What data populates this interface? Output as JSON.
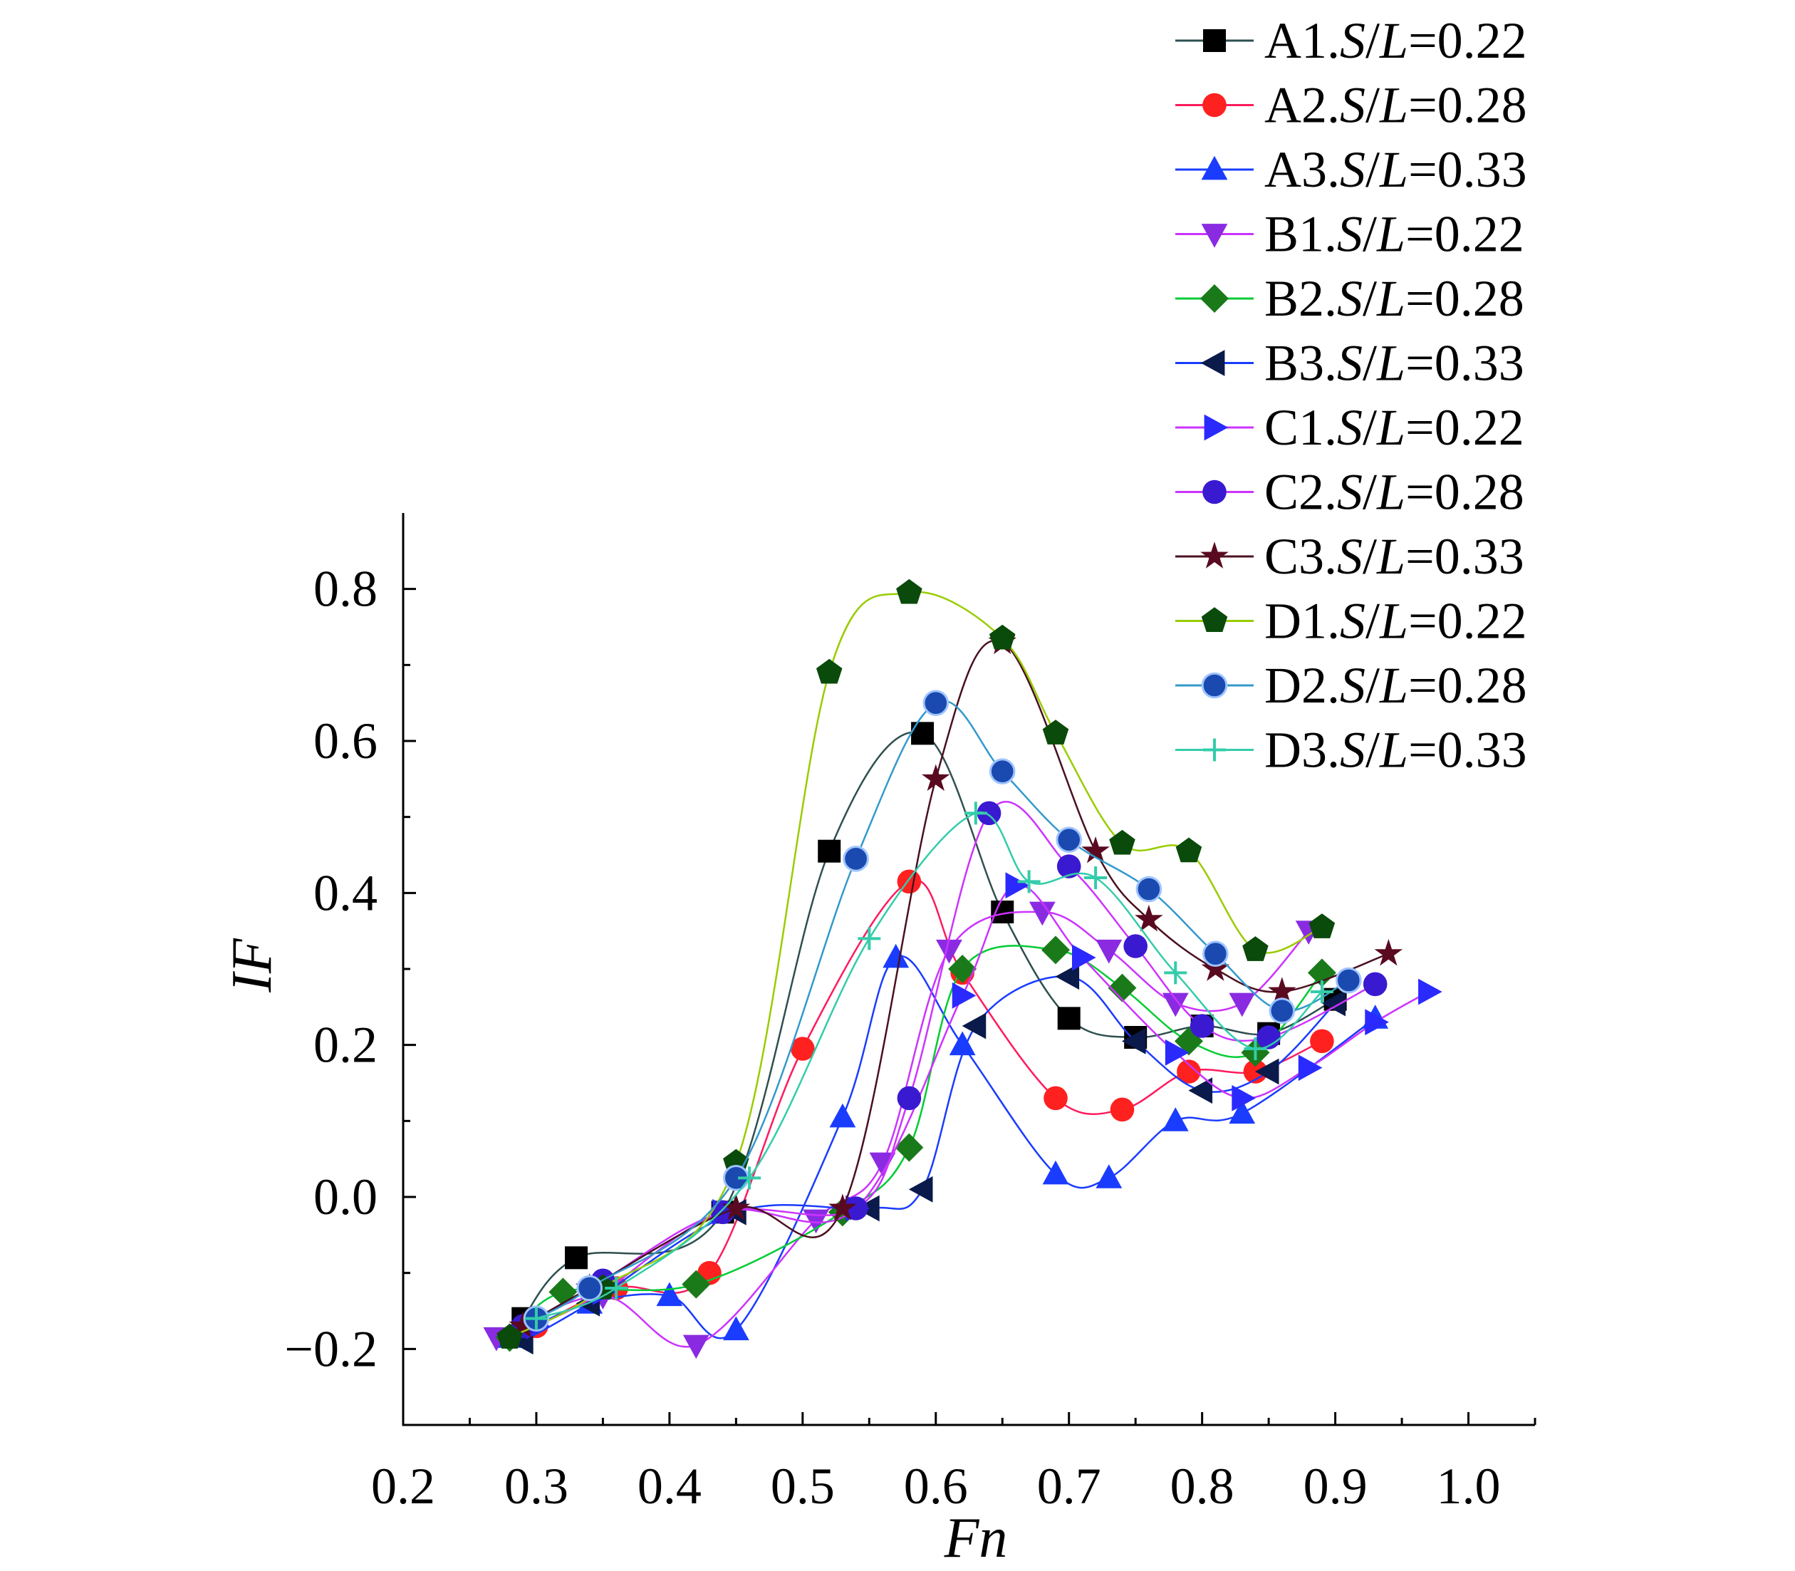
{
  "chart_data": {
    "type": "line",
    "title": "",
    "xlabel": "Fn",
    "ylabel": "IF",
    "xlim": [
      0.2,
      1.05
    ],
    "ylim": [
      -0.3,
      0.9
    ],
    "xticks": [
      "0.2",
      "0.3",
      "0.4",
      "0.5",
      "0.6",
      "0.7",
      "0.8",
      "0.9",
      "1.0"
    ],
    "xtick_values": [
      0.2,
      0.3,
      0.4,
      0.5,
      0.6,
      0.7,
      0.8,
      0.9,
      1.0
    ],
    "yticks": [
      "−0.2",
      "0.0",
      "0.2",
      "0.4",
      "0.6",
      "0.8"
    ],
    "ytick_values": [
      -0.2,
      0.0,
      0.2,
      0.4,
      0.6,
      0.8
    ],
    "grid": false,
    "legend_position": "top-right",
    "series": [
      {
        "label_prefix": "A1.",
        "label_ratio": "=0.22",
        "color": "#2f4f4f",
        "marker": "square",
        "marker_color": "#000000",
        "points": [
          [
            0.29,
            -0.16
          ],
          [
            0.33,
            -0.08
          ],
          [
            0.44,
            -0.02
          ],
          [
            0.52,
            0.455
          ],
          [
            0.59,
            0.61
          ],
          [
            0.65,
            0.375
          ],
          [
            0.7,
            0.235
          ],
          [
            0.75,
            0.21
          ],
          [
            0.8,
            0.225
          ],
          [
            0.85,
            0.215
          ],
          [
            0.9,
            0.26
          ]
        ]
      },
      {
        "label_prefix": "A2.",
        "label_ratio": "=0.28",
        "color": "#ff1a5e",
        "marker": "circle",
        "marker_color": "#ff2020",
        "points": [
          [
            0.3,
            -0.17
          ],
          [
            0.36,
            -0.12
          ],
          [
            0.43,
            -0.1
          ],
          [
            0.5,
            0.195
          ],
          [
            0.58,
            0.415
          ],
          [
            0.62,
            0.295
          ],
          [
            0.69,
            0.13
          ],
          [
            0.74,
            0.115
          ],
          [
            0.79,
            0.165
          ],
          [
            0.84,
            0.165
          ],
          [
            0.89,
            0.205
          ]
        ]
      },
      {
        "label_prefix": "A3.",
        "label_ratio": "=0.33",
        "color": "#1a3cff",
        "marker": "triangle-up",
        "marker_color": "#1a3cff",
        "points": [
          [
            0.28,
            -0.185
          ],
          [
            0.34,
            -0.14
          ],
          [
            0.4,
            -0.13
          ],
          [
            0.45,
            -0.175
          ],
          [
            0.53,
            0.105
          ],
          [
            0.57,
            0.315
          ],
          [
            0.62,
            0.2
          ],
          [
            0.69,
            0.03
          ],
          [
            0.73,
            0.025
          ],
          [
            0.78,
            0.1
          ],
          [
            0.83,
            0.11
          ],
          [
            0.93,
            0.235
          ]
        ]
      },
      {
        "label_prefix": "B1.",
        "label_ratio": "=0.22",
        "color": "#cc33ff",
        "marker": "triangle-down",
        "marker_color": "#8a2be2",
        "points": [
          [
            0.27,
            -0.185
          ],
          [
            0.35,
            -0.13
          ],
          [
            0.42,
            -0.195
          ],
          [
            0.51,
            -0.03
          ],
          [
            0.56,
            0.045
          ],
          [
            0.61,
            0.325
          ],
          [
            0.68,
            0.375
          ],
          [
            0.73,
            0.325
          ],
          [
            0.78,
            0.255
          ],
          [
            0.83,
            0.255
          ],
          [
            0.88,
            0.35
          ]
        ]
      },
      {
        "label_prefix": "B2.",
        "label_ratio": "=0.28",
        "color": "#00cc33",
        "marker": "diamond",
        "marker_color": "#1a7a1a",
        "points": [
          [
            0.28,
            -0.185
          ],
          [
            0.32,
            -0.125
          ],
          [
            0.42,
            -0.115
          ],
          [
            0.53,
            -0.02
          ],
          [
            0.58,
            0.065
          ],
          [
            0.62,
            0.3
          ],
          [
            0.69,
            0.325
          ],
          [
            0.74,
            0.275
          ],
          [
            0.79,
            0.205
          ],
          [
            0.84,
            0.19
          ],
          [
            0.89,
            0.295
          ]
        ]
      },
      {
        "label_prefix": "B3.",
        "label_ratio": "=0.33",
        "color": "#1a3cff",
        "marker": "triangle-left",
        "marker_color": "#0a1a4a",
        "points": [
          [
            0.29,
            -0.19
          ],
          [
            0.34,
            -0.14
          ],
          [
            0.45,
            -0.02
          ],
          [
            0.55,
            -0.015
          ],
          [
            0.59,
            0.01
          ],
          [
            0.63,
            0.225
          ],
          [
            0.7,
            0.29
          ],
          [
            0.75,
            0.205
          ],
          [
            0.8,
            0.14
          ],
          [
            0.85,
            0.165
          ],
          [
            0.9,
            0.255
          ]
        ]
      },
      {
        "label_prefix": "C1.",
        "label_ratio": "=0.22",
        "color": "#cc33ff",
        "marker": "triangle-right",
        "marker_color": "#2a2aff",
        "points": [
          [
            0.3,
            -0.17
          ],
          [
            0.35,
            -0.125
          ],
          [
            0.44,
            -0.02
          ],
          [
            0.54,
            -0.015
          ],
          [
            0.62,
            0.265
          ],
          [
            0.66,
            0.41
          ],
          [
            0.71,
            0.315
          ],
          [
            0.78,
            0.19
          ],
          [
            0.83,
            0.13
          ],
          [
            0.88,
            0.17
          ],
          [
            0.93,
            0.23
          ],
          [
            0.97,
            0.27
          ]
        ]
      },
      {
        "label_prefix": "C2.",
        "label_ratio": "=0.28",
        "color": "#cc33ff",
        "marker": "circle",
        "marker_color": "#3a1ad0",
        "points": [
          [
            0.29,
            -0.17
          ],
          [
            0.35,
            -0.11
          ],
          [
            0.44,
            -0.02
          ],
          [
            0.54,
            -0.015
          ],
          [
            0.58,
            0.13
          ],
          [
            0.64,
            0.505
          ],
          [
            0.7,
            0.435
          ],
          [
            0.75,
            0.33
          ],
          [
            0.8,
            0.225
          ],
          [
            0.85,
            0.21
          ],
          [
            0.93,
            0.28
          ]
        ]
      },
      {
        "label_prefix": "C3.",
        "label_ratio": "=0.33",
        "color": "#4a1020",
        "marker": "star",
        "marker_color": "#5a0a20",
        "points": [
          [
            0.29,
            -0.17
          ],
          [
            0.34,
            -0.12
          ],
          [
            0.45,
            -0.015
          ],
          [
            0.53,
            -0.015
          ],
          [
            0.6,
            0.55
          ],
          [
            0.65,
            0.73
          ],
          [
            0.72,
            0.455
          ],
          [
            0.76,
            0.365
          ],
          [
            0.81,
            0.3
          ],
          [
            0.86,
            0.27
          ],
          [
            0.94,
            0.32
          ]
        ]
      },
      {
        "label_prefix": "D1.",
        "label_ratio": "=0.22",
        "color": "#99cc00",
        "marker": "pentagon",
        "marker_color": "#0a4a0a",
        "points": [
          [
            0.28,
            -0.185
          ],
          [
            0.35,
            -0.12
          ],
          [
            0.45,
            0.045
          ],
          [
            0.52,
            0.69
          ],
          [
            0.58,
            0.795
          ],
          [
            0.65,
            0.735
          ],
          [
            0.69,
            0.61
          ],
          [
            0.74,
            0.465
          ],
          [
            0.79,
            0.455
          ],
          [
            0.84,
            0.325
          ],
          [
            0.89,
            0.355
          ]
        ]
      },
      {
        "label_prefix": "D2.",
        "label_ratio": "=0.28",
        "color": "#3399cc",
        "marker": "sphere",
        "marker_color": "#1a4ab0",
        "points": [
          [
            0.3,
            -0.16
          ],
          [
            0.34,
            -0.12
          ],
          [
            0.45,
            0.025
          ],
          [
            0.54,
            0.445
          ],
          [
            0.6,
            0.65
          ],
          [
            0.65,
            0.56
          ],
          [
            0.7,
            0.47
          ],
          [
            0.76,
            0.405
          ],
          [
            0.81,
            0.32
          ],
          [
            0.86,
            0.245
          ],
          [
            0.91,
            0.285
          ]
        ]
      },
      {
        "label_prefix": "D3.",
        "label_ratio": "=0.33",
        "color": "#33ccaa",
        "marker": "plus",
        "marker_color": "#33ccaa",
        "points": [
          [
            0.3,
            -0.16
          ],
          [
            0.36,
            -0.12
          ],
          [
            0.46,
            0.025
          ],
          [
            0.55,
            0.34
          ],
          [
            0.63,
            0.505
          ],
          [
            0.67,
            0.415
          ],
          [
            0.72,
            0.42
          ],
          [
            0.78,
            0.295
          ],
          [
            0.84,
            0.195
          ],
          [
            0.89,
            0.27
          ]
        ]
      }
    ]
  }
}
